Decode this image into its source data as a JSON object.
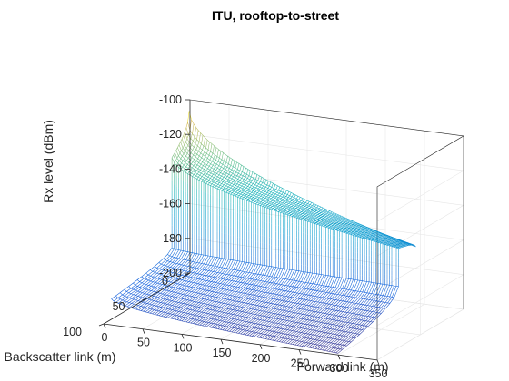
{
  "chart_data": {
    "type": "surface",
    "title": "ITU, rooftop-to-street",
    "xlabel": "Forward link (m)",
    "ylabel": "Backscatter link (m)",
    "zlabel": "Rx level (dBm)",
    "x_ticks": [
      "0",
      "50",
      "100",
      "150",
      "200",
      "250",
      "300",
      "350"
    ],
    "y_ticks": [
      "0",
      "50",
      "100"
    ],
    "z_ticks": [
      "-100",
      "-120",
      "-140",
      "-160",
      "-180",
      "-200"
    ],
    "xlim": [
      0,
      350
    ],
    "ylim": [
      0,
      100
    ],
    "zlim": [
      -200,
      -100
    ],
    "x_range": [
      10,
      300
    ],
    "y_range": [
      10,
      100
    ],
    "colormap": "parula",
    "grid": true,
    "model": {
      "description": "Rx level sampled from the surface",
      "break_at_y": 30,
      "near_upper_edge": {
        "y": 10,
        "at_x_min": -103,
        "at_x_max": -164
      },
      "near_lower_edge": {
        "y": 30,
        "at_x_min": -124,
        "at_x_max": -159
      },
      "far_upper_edge": {
        "y": 30,
        "at_x_min": -176,
        "at_x_max": -181
      },
      "far_lower_edge": {
        "y": 100,
        "at_x_min": -185,
        "at_x_max": -199
      }
    }
  }
}
